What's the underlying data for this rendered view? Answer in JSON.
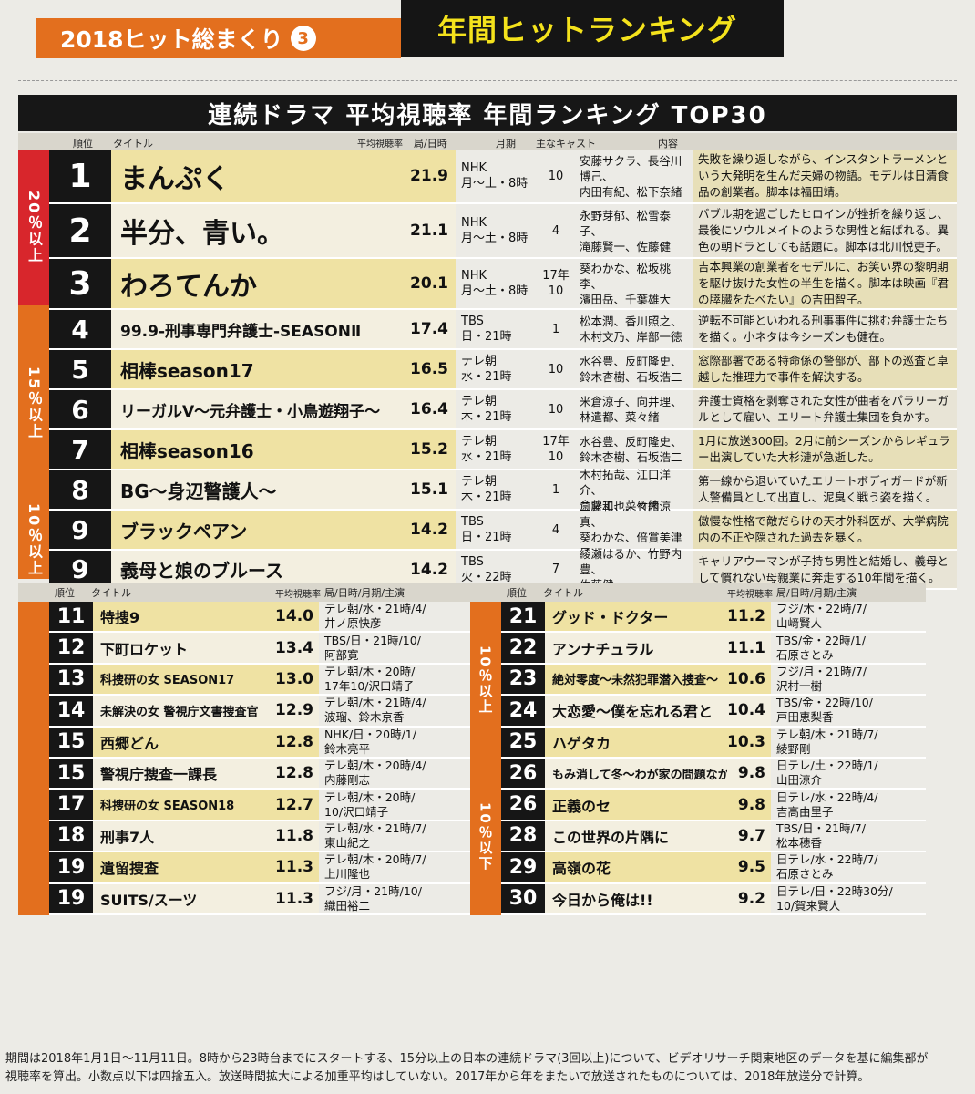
{
  "header": {
    "series": "2018ヒット総まくり",
    "number": "3",
    "section": "年間ヒットランキング"
  },
  "title": "連続ドラマ 平均視聴率 年間ランキング TOP30",
  "top_columns": {
    "rank": "順位",
    "title": "タイトル",
    "rating": "平均視聴率",
    "station": "局/日時",
    "month": "月期",
    "cast": "主なキャスト",
    "desc": "内容"
  },
  "top_groups": [
    {
      "label": "20％以上",
      "color": "#d8262c"
    },
    {
      "label": "15％以上",
      "color": "#e36f1e"
    },
    {
      "label": "10％以上",
      "color": "#e36f1e"
    }
  ],
  "top_rows": [
    {
      "rank": "1",
      "title": "まんぷく",
      "rating": "21.9",
      "station1": "NHK",
      "station2": "月〜土・8時",
      "month1": "",
      "month2": "10",
      "cast1": "安藤サクラ、長谷川博己、",
      "cast2": "内田有紀、松下奈緒",
      "desc": "失敗を繰り返しながら、インスタントラーメンという大発明を生んだ夫婦の物語。モデルは日清食品の創業者。脚本は福田靖。"
    },
    {
      "rank": "2",
      "title": "半分、青い。",
      "rating": "21.1",
      "station1": "NHK",
      "station2": "月〜土・8時",
      "month1": "",
      "month2": "4",
      "cast1": "永野芽郁、松雪泰子、",
      "cast2": "滝藤賢一、佐藤健",
      "desc": "バブル期を過ごしたヒロインが挫折を繰り返し、最後にソウルメイトのような男性と結ばれる。異色の朝ドラとしても話題に。脚本は北川悦吏子。"
    },
    {
      "rank": "3",
      "title": "わろてんか",
      "rating": "20.1",
      "station1": "NHK",
      "station2": "月〜土・8時",
      "month1": "17年",
      "month2": "10",
      "cast1": "葵わかな、松坂桃李、",
      "cast2": "濱田岳、千葉雄大",
      "desc": "吉本興業の創業者をモデルに、お笑い界の黎明期を駆け抜けた女性の半生を描く。脚本は映画『君の膵臓をたべたい』の吉田智子。"
    },
    {
      "rank": "4",
      "title": "99.9-刑事専門弁護士-SEASONⅡ",
      "rating": "17.4",
      "station1": "TBS",
      "station2": "日・21時",
      "month1": "",
      "month2": "1",
      "cast1": "松本潤、香川照之、",
      "cast2": "木村文乃、岸部一徳",
      "desc": "逆転不可能といわれる刑事事件に挑む弁護士たちを描く。小ネタは今シーズンも健在。"
    },
    {
      "rank": "5",
      "title": "相棒season17",
      "rating": "16.5",
      "station1": "テレ朝",
      "station2": "水・21時",
      "month1": "",
      "month2": "10",
      "cast1": "水谷豊、反町隆史、",
      "cast2": "鈴木杏樹、石坂浩二",
      "desc": "窓際部署である特命係の警部が、部下の巡査と卓越した推理力で事件を解決する。"
    },
    {
      "rank": "6",
      "title": "リーガルV〜元弁護士・小鳥遊翔子〜",
      "rating": "16.4",
      "station1": "テレ朝",
      "station2": "木・21時",
      "month1": "",
      "month2": "10",
      "cast1": "米倉涼子、向井理、",
      "cast2": "林遣都、菜々緒",
      "desc": "弁護士資格を剥奪された女性が曲者をパラリーガルとして雇い、エリート弁護士集団を負かす。"
    },
    {
      "rank": "7",
      "title": "相棒season16",
      "rating": "15.2",
      "station1": "テレ朝",
      "station2": "水・21時",
      "month1": "17年",
      "month2": "10",
      "cast1": "水谷豊、反町隆史、",
      "cast2": "鈴木杏樹、石坂浩二",
      "desc": "1月に放送300回。2月に前シーズンからレギュラー出演していた大杉漣が急逝した。"
    },
    {
      "rank": "8",
      "title": "BG〜身辺警護人〜",
      "rating": "15.1",
      "station1": "テレ朝",
      "station2": "木・21時",
      "month1": "",
      "month2": "1",
      "cast1": "木村拓哉、江口洋介、",
      "cast2": "斎藤工、菜々緒",
      "desc": "第一線から退いていたエリートボディガードが新人警備員として出直し、泥臭く戦う姿を描く。"
    },
    {
      "rank": "9",
      "title": "ブラックペアン",
      "rating": "14.2",
      "station1": "TBS",
      "station2": "日・21時",
      "month1": "",
      "month2": "4",
      "cast1": "二宮和也、竹内涼真、",
      "cast2": "葵わかな、倍賞美津子",
      "desc": "傲慢な性格で敵だらけの天才外科医が、大学病院内の不正や隠された過去を暴く。"
    },
    {
      "rank": "9",
      "title": "義母と娘のブルース",
      "rating": "14.2",
      "station1": "TBS",
      "station2": "火・22時",
      "month1": "",
      "month2": "7",
      "cast1": "綾瀬はるか、竹野内豊、",
      "cast2": "佐藤健",
      "desc": "キャリアウーマンが子持ち男性と結婚し、義母として慣れない母親業に奔走する10年間を描く。"
    }
  ],
  "bottom_columns": {
    "rank": "順位",
    "title": "タイトル",
    "rating": "平均視聴率",
    "info": "局/日時/月期/主演"
  },
  "left_rows": [
    {
      "rank": "11",
      "title": "特捜9",
      "rating": "14.0",
      "info1": "テレ朝/水・21時/4/",
      "info2": "井ノ原快彦"
    },
    {
      "rank": "12",
      "title": "下町ロケット",
      "rating": "13.4",
      "info1": "TBS/日・21時/10/",
      "info2": "阿部寛"
    },
    {
      "rank": "13",
      "title": "科捜研の女 SEASON17",
      "rating": "13.0",
      "info1": "テレ朝/木・20時/",
      "info2": "17年10/沢口靖子"
    },
    {
      "rank": "14",
      "title": "未解決の女 警視庁文書捜査官",
      "rating": "12.9",
      "info1": "テレ朝/木・21時/4/",
      "info2": "波瑠、鈴木京香"
    },
    {
      "rank": "15",
      "title": "西郷どん",
      "rating": "12.8",
      "info1": "NHK/日・20時/1/",
      "info2": "鈴木亮平"
    },
    {
      "rank": "15",
      "title": "警視庁捜査一課長",
      "rating": "12.8",
      "info1": "テレ朝/木・20時/4/",
      "info2": "内藤剛志"
    },
    {
      "rank": "17",
      "title": "科捜研の女 SEASON18",
      "rating": "12.7",
      "info1": "テレ朝/木・20時/",
      "info2": "10/沢口靖子"
    },
    {
      "rank": "18",
      "title": "刑事7人",
      "rating": "11.8",
      "info1": "テレ朝/水・21時/7/",
      "info2": "東山紀之"
    },
    {
      "rank": "19",
      "title": "遺留捜査",
      "rating": "11.3",
      "info1": "テレ朝/木・20時/7/",
      "info2": "上川隆也"
    },
    {
      "rank": "19",
      "title": "SUITS/スーツ",
      "rating": "11.3",
      "info1": "フジ/月・21時/10/",
      "info2": "織田裕二"
    }
  ],
  "right_rows": [
    {
      "rank": "21",
      "title": "グッド・ドクター",
      "rating": "11.2",
      "info1": "フジ/木・22時/7/",
      "info2": "山﨑賢人"
    },
    {
      "rank": "22",
      "title": "アンナチュラル",
      "rating": "11.1",
      "info1": "TBS/金・22時/1/",
      "info2": "石原さとみ"
    },
    {
      "rank": "23",
      "title": "絶対零度〜未然犯罪潜入捜査〜",
      "rating": "10.6",
      "info1": "フジ/月・21時/7/",
      "info2": "沢村一樹"
    },
    {
      "rank": "24",
      "title": "大恋愛〜僕を忘れる君と",
      "rating": "10.4",
      "info1": "TBS/金・22時/10/",
      "info2": "戸田恵梨香"
    },
    {
      "rank": "25",
      "title": "ハゲタカ",
      "rating": "10.3",
      "info1": "テレ朝/木・21時/7/",
      "info2": "綾野剛"
    },
    {
      "rank": "26",
      "title": "もみ消して冬〜わが家の問題なかったことに〜",
      "rating": "9.8",
      "info1": "日テレ/土・22時/1/",
      "info2": "山田涼介"
    },
    {
      "rank": "26",
      "title": "正義のセ",
      "rating": "9.8",
      "info1": "日テレ/水・22時/4/",
      "info2": "吉高由里子"
    },
    {
      "rank": "28",
      "title": "この世界の片隅に",
      "rating": "9.7",
      "info1": "TBS/日・21時/7/",
      "info2": "松本穂香"
    },
    {
      "rank": "29",
      "title": "高嶺の花",
      "rating": "9.5",
      "info1": "日テレ/水・22時/7/",
      "info2": "石原さとみ"
    },
    {
      "rank": "30",
      "title": "今日から俺は!!",
      "rating": "9.2",
      "info1": "日テレ/日・22時30分/",
      "info2": "10/賀来賢人"
    }
  ],
  "bottom_groups": {
    "right_upper": "10％以上",
    "right_lower": "10％以下"
  },
  "footnote1": "期間は2018年1月1日〜11月11日。8時から23時台までにスタートする、15分以上の日本の連続ドラマ(3回以上)について、ビデオリサーチ関東地区のデータを基に編集部が",
  "footnote2": "視聴率を算出。小数点以下は四捨五入。放送時間拡大による加重平均はしていない。2017年から年をまたいで放送されたものについては、2018年放送分で計算。"
}
